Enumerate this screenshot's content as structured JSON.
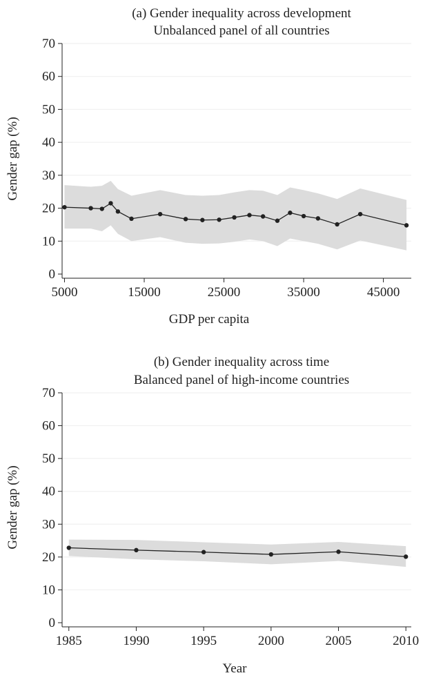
{
  "chart_data": [
    {
      "type": "line",
      "title": "(a) Gender inequality across development",
      "subtitle": "Unbalanced panel of all countries",
      "xlabel": "GDP per capita",
      "ylabel": "Gender gap (%)",
      "xlim": [
        4700,
        48500
      ],
      "ylim": [
        0,
        70
      ],
      "xticks": [
        5000,
        15000,
        25000,
        35000,
        45000
      ],
      "yticks": [
        0,
        10,
        20,
        30,
        40,
        50,
        60,
        70
      ],
      "grid": "horizontal",
      "band_color": "#dcdcdc",
      "line_color": "#222222",
      "points": [
        {
          "x": 5000,
          "y": 20.3,
          "lo": 13.8,
          "hi": 27.0
        },
        {
          "x": 8300,
          "y": 20.0,
          "lo": 13.8,
          "hi": 26.5
        },
        {
          "x": 9700,
          "y": 19.8,
          "lo": 13.0,
          "hi": 26.8
        },
        {
          "x": 10800,
          "y": 21.5,
          "lo": 14.8,
          "hi": 28.3
        },
        {
          "x": 11700,
          "y": 19.0,
          "lo": 12.2,
          "hi": 25.8
        },
        {
          "x": 13400,
          "y": 16.8,
          "lo": 10.0,
          "hi": 23.8
        },
        {
          "x": 17000,
          "y": 18.2,
          "lo": 11.2,
          "hi": 25.5
        },
        {
          "x": 20200,
          "y": 16.7,
          "lo": 9.5,
          "hi": 24.0
        },
        {
          "x": 22300,
          "y": 16.4,
          "lo": 9.2,
          "hi": 23.8
        },
        {
          "x": 24400,
          "y": 16.5,
          "lo": 9.3,
          "hi": 24.0
        },
        {
          "x": 26300,
          "y": 17.2,
          "lo": 9.8,
          "hi": 24.8
        },
        {
          "x": 28200,
          "y": 17.9,
          "lo": 10.5,
          "hi": 25.5
        },
        {
          "x": 29900,
          "y": 17.5,
          "lo": 10.0,
          "hi": 25.3
        },
        {
          "x": 31700,
          "y": 16.2,
          "lo": 8.5,
          "hi": 24.0
        },
        {
          "x": 33300,
          "y": 18.6,
          "lo": 10.8,
          "hi": 26.3
        },
        {
          "x": 35000,
          "y": 17.6,
          "lo": 10.0,
          "hi": 25.5
        },
        {
          "x": 36800,
          "y": 16.9,
          "lo": 9.2,
          "hi": 24.5
        },
        {
          "x": 39200,
          "y": 15.1,
          "lo": 7.5,
          "hi": 22.8
        },
        {
          "x": 42100,
          "y": 18.2,
          "lo": 10.2,
          "hi": 26.0
        },
        {
          "x": 47900,
          "y": 14.8,
          "lo": 7.2,
          "hi": 22.5
        }
      ]
    },
    {
      "type": "line",
      "title": "(b) Gender inequality across time",
      "subtitle": "Balanced panel of high-income countries",
      "xlabel": "Year",
      "ylabel": "Gender gap (%)",
      "xlim": [
        1984.5,
        2010.4
      ],
      "ylim": [
        0,
        70
      ],
      "xticks": [
        1985,
        1990,
        1995,
        2000,
        2005,
        2010
      ],
      "yticks": [
        0,
        10,
        20,
        30,
        40,
        50,
        60,
        70
      ],
      "grid": "horizontal",
      "band_color": "#dcdcdc",
      "line_color": "#222222",
      "points": [
        {
          "x": 1985,
          "y": 22.8,
          "lo": 20.3,
          "hi": 25.3
        },
        {
          "x": 1990,
          "y": 22.1,
          "lo": 19.3,
          "hi": 25.2
        },
        {
          "x": 1995,
          "y": 21.5,
          "lo": 18.7,
          "hi": 24.5
        },
        {
          "x": 2000,
          "y": 20.8,
          "lo": 17.8,
          "hi": 23.8
        },
        {
          "x": 2005,
          "y": 21.6,
          "lo": 18.8,
          "hi": 24.6
        },
        {
          "x": 2010,
          "y": 20.1,
          "lo": 17.0,
          "hi": 23.3
        }
      ]
    }
  ]
}
